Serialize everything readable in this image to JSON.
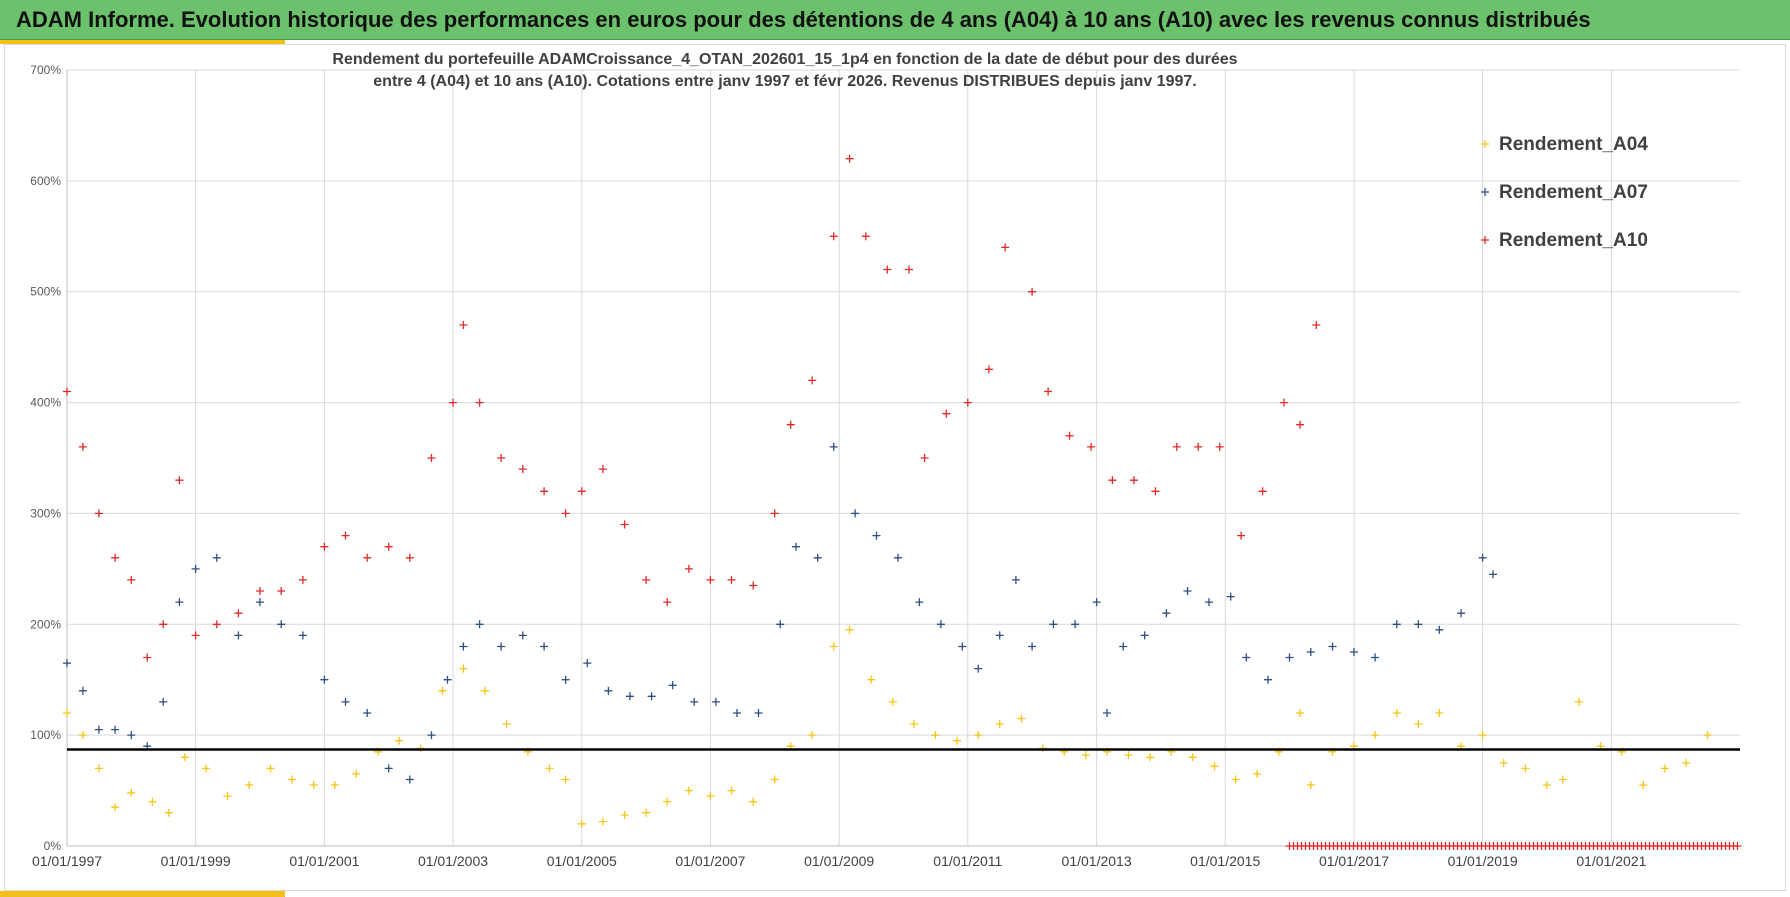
{
  "header": {
    "title": "ADAM Informe. Evolution historique des performances en euros pour des détentions de 4 ans (A04) à 10 ans (A10) avec les revenus connus distribués"
  },
  "colors": {
    "header_bg": "#6cc26c",
    "accent": "#f2c017",
    "A04": "#f5c518",
    "A07": "#2f4f80",
    "A10": "#e02a2a",
    "reference_line": "#000000",
    "grid": "#d9d9d9"
  },
  "chart_data": {
    "type": "scatter",
    "title_line1": "Rendement du portefeuille ADAMCroissance_4_OTAN_202601_15_1p4  en fonction de la date de début pour des durées",
    "title_line2": "entre 4 (A04) et 10 ans (A10). Cotations entre janv 1997 et févr 2026. Revenus DISTRIBUES depuis janv 1997.",
    "xlabel": "",
    "ylabel": "",
    "x_range": [
      "1997-01-01",
      "2023-01-01"
    ],
    "ylim": [
      0,
      7
    ],
    "y_format": "percent",
    "y_ticks": [
      0,
      1,
      2,
      3,
      4,
      5,
      6,
      7
    ],
    "y_tick_labels": [
      "0%",
      "100%",
      "200%",
      "300%",
      "400%",
      "500%",
      "600%",
      "700%"
    ],
    "x_ticks": [
      "1997-01-01",
      "1999-01-01",
      "2001-01-01",
      "2003-01-01",
      "2005-01-01",
      "2007-01-01",
      "2009-01-01",
      "2011-01-01",
      "2013-01-01",
      "2015-01-01",
      "2017-01-01",
      "2019-01-01",
      "2021-01-01"
    ],
    "x_tick_labels": [
      "01/01/1997",
      "01/01/1999",
      "01/01/2001",
      "01/01/2003",
      "01/01/2005",
      "01/01/2007",
      "01/01/2009",
      "01/01/2011",
      "01/01/2013",
      "01/01/2015",
      "01/01/2017",
      "01/01/2019",
      "01/01/2021"
    ],
    "grid": true,
    "legend_position": "top-right",
    "marker": "plus",
    "reference_line": {
      "y": 0.87
    },
    "series": [
      {
        "name": "Rendement_A04",
        "color": "#f5c518",
        "points": [
          [
            "1997-01-01",
            1.2
          ],
          [
            "1997-04-01",
            1.0
          ],
          [
            "1997-07-01",
            0.7
          ],
          [
            "1997-10-01",
            0.35
          ],
          [
            "1998-01-01",
            0.48
          ],
          [
            "1998-05-01",
            0.4
          ],
          [
            "1998-08-01",
            0.3
          ],
          [
            "1998-11-01",
            0.8
          ],
          [
            "1999-03-01",
            0.7
          ],
          [
            "1999-07-01",
            0.45
          ],
          [
            "1999-11-01",
            0.55
          ],
          [
            "2000-03-01",
            0.7
          ],
          [
            "2000-07-01",
            0.6
          ],
          [
            "2000-11-01",
            0.55
          ],
          [
            "2001-03-01",
            0.55
          ],
          [
            "2001-07-01",
            0.65
          ],
          [
            "2001-11-01",
            0.85
          ],
          [
            "2002-03-01",
            0.95
          ],
          [
            "2002-07-01",
            0.88
          ],
          [
            "2002-11-01",
            1.4
          ],
          [
            "2003-03-01",
            1.6
          ],
          [
            "2003-07-01",
            1.4
          ],
          [
            "2003-11-01",
            1.1
          ],
          [
            "2004-03-01",
            0.85
          ],
          [
            "2004-07-01",
            0.7
          ],
          [
            "2004-10-01",
            0.6
          ],
          [
            "2005-01-01",
            0.2
          ],
          [
            "2005-05-01",
            0.22
          ],
          [
            "2005-09-01",
            0.28
          ],
          [
            "2006-01-01",
            0.3
          ],
          [
            "2006-05-01",
            0.4
          ],
          [
            "2006-09-01",
            0.5
          ],
          [
            "2007-01-01",
            0.45
          ],
          [
            "2007-05-01",
            0.5
          ],
          [
            "2007-09-01",
            0.4
          ],
          [
            "2008-01-01",
            0.6
          ],
          [
            "2008-04-01",
            0.9
          ],
          [
            "2008-08-01",
            1.0
          ],
          [
            "2008-12-01",
            1.8
          ],
          [
            "2009-03-01",
            1.95
          ],
          [
            "2009-07-01",
            1.5
          ],
          [
            "2009-11-01",
            1.3
          ],
          [
            "2010-03-01",
            1.1
          ],
          [
            "2010-07-01",
            1.0
          ],
          [
            "2010-11-01",
            0.95
          ],
          [
            "2011-03-01",
            1.0
          ],
          [
            "2011-07-01",
            1.1
          ],
          [
            "2011-11-01",
            1.15
          ],
          [
            "2012-03-01",
            0.88
          ],
          [
            "2012-07-01",
            0.85
          ],
          [
            "2012-11-01",
            0.82
          ],
          [
            "2013-03-01",
            0.85
          ],
          [
            "2013-07-01",
            0.82
          ],
          [
            "2013-11-01",
            0.8
          ],
          [
            "2014-03-01",
            0.85
          ],
          [
            "2014-07-01",
            0.8
          ],
          [
            "2014-11-01",
            0.72
          ],
          [
            "2015-03-01",
            0.6
          ],
          [
            "2015-07-01",
            0.65
          ],
          [
            "2015-11-01",
            0.85
          ],
          [
            "2016-03-01",
            1.2
          ],
          [
            "2016-05-01",
            0.55
          ],
          [
            "2016-09-01",
            0.85
          ],
          [
            "2017-01-01",
            0.9
          ],
          [
            "2017-05-01",
            1.0
          ],
          [
            "2017-09-01",
            1.2
          ],
          [
            "2018-01-01",
            1.1
          ],
          [
            "2018-05-01",
            1.2
          ],
          [
            "2018-09-01",
            0.9
          ],
          [
            "2019-01-01",
            1.0
          ],
          [
            "2019-05-01",
            0.75
          ],
          [
            "2019-09-01",
            0.7
          ],
          [
            "2020-01-01",
            0.55
          ],
          [
            "2020-04-01",
            0.6
          ],
          [
            "2020-07-01",
            1.3
          ],
          [
            "2020-11-01",
            0.9
          ],
          [
            "2021-03-01",
            0.85
          ],
          [
            "2021-07-01",
            0.55
          ],
          [
            "2021-11-01",
            0.7
          ],
          [
            "2022-03-01",
            0.75
          ],
          [
            "2022-07-01",
            1.0
          ]
        ]
      },
      {
        "name": "Rendement_A07",
        "color": "#2f4f80",
        "points": [
          [
            "1997-01-01",
            1.65
          ],
          [
            "1997-04-01",
            1.4
          ],
          [
            "1997-07-01",
            1.05
          ],
          [
            "1997-10-01",
            1.05
          ],
          [
            "1998-01-01",
            1.0
          ],
          [
            "1998-04-01",
            0.9
          ],
          [
            "1998-07-01",
            1.3
          ],
          [
            "1998-10-01",
            2.2
          ],
          [
            "1999-01-01",
            2.5
          ],
          [
            "1999-05-01",
            2.6
          ],
          [
            "1999-09-01",
            1.9
          ],
          [
            "2000-01-01",
            2.2
          ],
          [
            "2000-05-01",
            2.0
          ],
          [
            "2000-09-01",
            1.9
          ],
          [
            "2001-01-01",
            1.5
          ],
          [
            "2001-05-01",
            1.3
          ],
          [
            "2001-09-01",
            1.2
          ],
          [
            "2002-01-01",
            0.7
          ],
          [
            "2002-05-01",
            0.6
          ],
          [
            "2002-09-01",
            1.0
          ],
          [
            "2002-12-01",
            1.5
          ],
          [
            "2003-03-01",
            1.8
          ],
          [
            "2003-06-01",
            2.0
          ],
          [
            "2003-10-01",
            1.8
          ],
          [
            "2004-02-01",
            1.9
          ],
          [
            "2004-06-01",
            1.8
          ],
          [
            "2004-10-01",
            1.5
          ],
          [
            "2005-02-01",
            1.65
          ],
          [
            "2005-06-01",
            1.4
          ],
          [
            "2005-10-01",
            1.35
          ],
          [
            "2006-02-01",
            1.35
          ],
          [
            "2006-06-01",
            1.45
          ],
          [
            "2006-10-01",
            1.3
          ],
          [
            "2007-02-01",
            1.3
          ],
          [
            "2007-06-01",
            1.2
          ],
          [
            "2007-10-01",
            1.2
          ],
          [
            "2008-02-01",
            2.0
          ],
          [
            "2008-05-01",
            2.7
          ],
          [
            "2008-09-01",
            2.6
          ],
          [
            "2008-12-01",
            3.6
          ],
          [
            "2009-04-01",
            3.0
          ],
          [
            "2009-08-01",
            2.8
          ],
          [
            "2009-12-01",
            2.6
          ],
          [
            "2010-04-01",
            2.2
          ],
          [
            "2010-08-01",
            2.0
          ],
          [
            "2010-12-01",
            1.8
          ],
          [
            "2011-03-01",
            1.6
          ],
          [
            "2011-07-01",
            1.9
          ],
          [
            "2011-10-01",
            2.4
          ],
          [
            "2012-01-01",
            1.8
          ],
          [
            "2012-05-01",
            2.0
          ],
          [
            "2012-09-01",
            2.0
          ],
          [
            "2013-01-01",
            2.2
          ],
          [
            "2013-03-01",
            1.2
          ],
          [
            "2013-06-01",
            1.8
          ],
          [
            "2013-10-01",
            1.9
          ],
          [
            "2014-02-01",
            2.1
          ],
          [
            "2014-06-01",
            2.3
          ],
          [
            "2014-10-01",
            2.2
          ],
          [
            "2015-02-01",
            2.25
          ],
          [
            "2015-05-01",
            1.7
          ],
          [
            "2015-09-01",
            1.5
          ],
          [
            "2016-01-01",
            1.7
          ],
          [
            "2016-05-01",
            1.75
          ],
          [
            "2016-09-01",
            1.8
          ],
          [
            "2017-01-01",
            1.75
          ],
          [
            "2017-05-01",
            1.7
          ],
          [
            "2017-09-01",
            2.0
          ],
          [
            "2018-01-01",
            2.0
          ],
          [
            "2018-05-01",
            1.95
          ],
          [
            "2018-09-01",
            2.1
          ],
          [
            "2019-01-01",
            2.6
          ],
          [
            "2019-03-01",
            2.45
          ]
        ]
      },
      {
        "name": "Rendement_A10",
        "color": "#e02a2a",
        "points": [
          [
            "1997-01-01",
            4.1
          ],
          [
            "1997-04-01",
            3.6
          ],
          [
            "1997-07-01",
            3.0
          ],
          [
            "1997-10-01",
            2.6
          ],
          [
            "1998-01-01",
            2.4
          ],
          [
            "1998-04-01",
            1.7
          ],
          [
            "1998-07-01",
            2.0
          ],
          [
            "1998-10-01",
            3.3
          ],
          [
            "1999-01-01",
            1.9
          ],
          [
            "1999-05-01",
            2.0
          ],
          [
            "1999-09-01",
            2.1
          ],
          [
            "2000-01-01",
            2.3
          ],
          [
            "2000-05-01",
            2.3
          ],
          [
            "2000-09-01",
            2.4
          ],
          [
            "2001-01-01",
            2.7
          ],
          [
            "2001-05-01",
            2.8
          ],
          [
            "2001-09-01",
            2.6
          ],
          [
            "2002-01-01",
            2.7
          ],
          [
            "2002-05-01",
            2.6
          ],
          [
            "2002-09-01",
            3.5
          ],
          [
            "2003-01-01",
            4.0
          ],
          [
            "2003-03-01",
            4.7
          ],
          [
            "2003-06-01",
            4.0
          ],
          [
            "2003-10-01",
            3.5
          ],
          [
            "2004-02-01",
            3.4
          ],
          [
            "2004-06-01",
            3.2
          ],
          [
            "2004-10-01",
            3.0
          ],
          [
            "2005-01-01",
            3.2
          ],
          [
            "2005-05-01",
            3.4
          ],
          [
            "2005-09-01",
            2.9
          ],
          [
            "2006-01-01",
            2.4
          ],
          [
            "2006-05-01",
            2.2
          ],
          [
            "2006-09-01",
            2.5
          ],
          [
            "2007-01-01",
            2.4
          ],
          [
            "2007-05-01",
            2.4
          ],
          [
            "2007-09-01",
            2.35
          ],
          [
            "2008-01-01",
            3.0
          ],
          [
            "2008-04-01",
            3.8
          ],
          [
            "2008-08-01",
            4.2
          ],
          [
            "2008-12-01",
            5.5
          ],
          [
            "2009-03-01",
            6.2
          ],
          [
            "2009-06-01",
            5.5
          ],
          [
            "2009-10-01",
            5.2
          ],
          [
            "2010-02-01",
            5.2
          ],
          [
            "2010-05-01",
            3.5
          ],
          [
            "2010-09-01",
            3.9
          ],
          [
            "2011-01-01",
            4.0
          ],
          [
            "2011-05-01",
            4.3
          ],
          [
            "2011-08-01",
            5.4
          ],
          [
            "2012-01-01",
            5.0
          ],
          [
            "2012-04-01",
            4.1
          ],
          [
            "2012-08-01",
            3.7
          ],
          [
            "2012-12-01",
            3.6
          ],
          [
            "2013-04-01",
            3.3
          ],
          [
            "2013-08-01",
            3.3
          ],
          [
            "2013-12-01",
            3.2
          ],
          [
            "2014-04-01",
            3.6
          ],
          [
            "2014-08-01",
            3.6
          ],
          [
            "2014-12-01",
            3.6
          ],
          [
            "2015-04-01",
            2.8
          ],
          [
            "2015-08-01",
            3.2
          ],
          [
            "2015-12-01",
            4.0
          ],
          [
            "2016-03-01",
            3.8
          ],
          [
            "2016-06-01",
            4.7
          ]
        ]
      },
      {
        "name": "A10 (marqueurs sur l'axe)",
        "color": "#e02a2a",
        "legend": false,
        "axis_band": {
          "y": 0,
          "from": "2016-01-01",
          "to": "2023-01-01"
        }
      }
    ]
  }
}
